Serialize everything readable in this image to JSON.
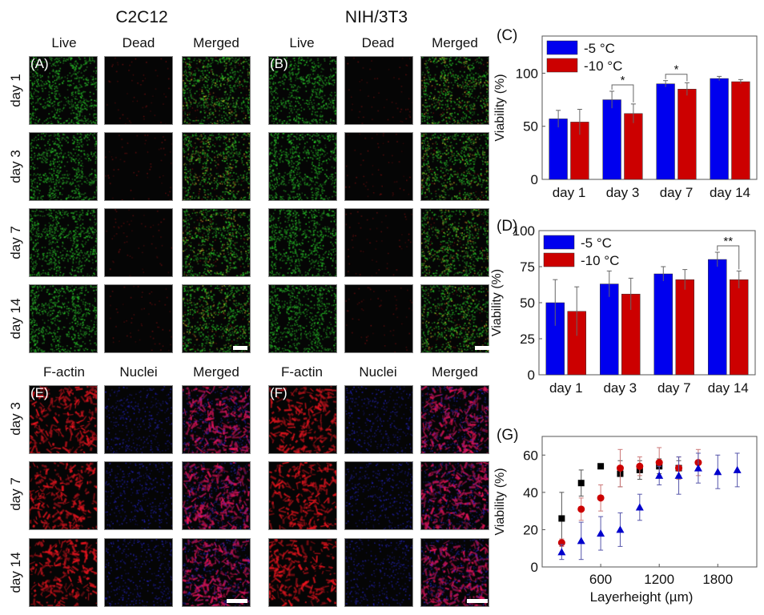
{
  "panels": {
    "c2c12_title": "C2C12",
    "nih_title": "NIH/3T3",
    "live": "Live",
    "dead": "Dead",
    "merged": "Merged",
    "factin": "F-actin",
    "nuclei": "Nuclei",
    "days_ab": [
      "day 1",
      "day 3",
      "day 7",
      "day 14"
    ],
    "days_ef": [
      "day 3",
      "day 7",
      "day 14"
    ],
    "labels": {
      "A": "(A)",
      "B": "(B)",
      "C": "(C)",
      "D": "(D)",
      "E": "(E)",
      "F": "(F)",
      "G": "(G)"
    }
  },
  "colors": {
    "blue": "#0000ee",
    "red": "#cc0000",
    "black": "#000000",
    "tri": "#0000cc"
  },
  "chart_data": [
    {
      "id": "C",
      "type": "bar",
      "categories": [
        "day 1",
        "day 3",
        "day 7",
        "day 14"
      ],
      "ylabel": "Viability (%)",
      "ylim": [
        0,
        135
      ],
      "yticks": [
        0,
        50,
        100
      ],
      "legend_position": "top-left",
      "series": [
        {
          "name": "-5 °C",
          "values": [
            57,
            75,
            90,
            95
          ],
          "errors": [
            8,
            8,
            3,
            2
          ]
        },
        {
          "name": "-10 °C",
          "values": [
            54,
            62,
            85,
            92
          ],
          "errors": [
            12,
            9,
            6,
            2
          ]
        }
      ],
      "significance": [
        {
          "category": "day 3",
          "mark": "*"
        },
        {
          "category": "day 7",
          "mark": "*"
        }
      ]
    },
    {
      "id": "D",
      "type": "bar",
      "categories": [
        "day 1",
        "day 3",
        "day 7",
        "day 14"
      ],
      "ylabel": "Viability (%)",
      "ylim": [
        0,
        100
      ],
      "yticks": [
        0,
        25,
        50,
        75,
        100
      ],
      "legend_position": "top-left",
      "series": [
        {
          "name": "-5 °C",
          "values": [
            50,
            63,
            70,
            80
          ],
          "errors": [
            16,
            9,
            5,
            5
          ]
        },
        {
          "name": "-10 °C",
          "values": [
            44,
            56,
            66,
            66
          ],
          "errors": [
            17,
            11,
            7,
            6
          ]
        }
      ],
      "significance": [
        {
          "category": "day 14",
          "mark": "**"
        }
      ]
    },
    {
      "id": "G",
      "type": "scatter",
      "xlabel": "Layerheight (µm)",
      "ylabel": "Viability (%)",
      "xlim": [
        0,
        2200
      ],
      "ylim": [
        0,
        70
      ],
      "xticks": [
        600,
        1200,
        1800
      ],
      "yticks": [
        0,
        20,
        40,
        60
      ],
      "series": [
        {
          "marker": "square",
          "x": [
            200,
            400,
            600,
            800,
            1000,
            1200,
            1400
          ],
          "y": [
            26,
            45,
            54,
            50,
            52,
            54,
            53
          ],
          "errors": [
            14,
            7,
            1,
            7,
            5,
            4,
            4
          ]
        },
        {
          "marker": "circle",
          "x": [
            200,
            400,
            600,
            800,
            1000,
            1200,
            1400,
            1600
          ],
          "y": [
            13,
            31,
            37,
            53,
            54,
            56,
            53,
            56
          ],
          "errors": [
            2,
            6,
            7,
            10,
            5,
            8,
            6,
            7
          ]
        },
        {
          "marker": "triangle",
          "x": [
            200,
            400,
            600,
            800,
            1000,
            1200,
            1400,
            1600,
            1800,
            2000
          ],
          "y": [
            8,
            14,
            18,
            20,
            32,
            49,
            49,
            53,
            51,
            52
          ],
          "errors": [
            4,
            10,
            9,
            9,
            7,
            5,
            10,
            8,
            9,
            9
          ]
        }
      ]
    }
  ]
}
